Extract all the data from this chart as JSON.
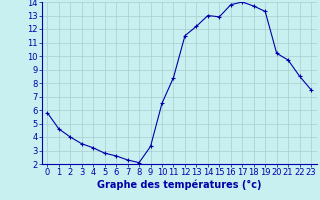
{
  "x": [
    0,
    1,
    2,
    3,
    4,
    5,
    6,
    7,
    8,
    9,
    10,
    11,
    12,
    13,
    14,
    15,
    16,
    17,
    18,
    19,
    20,
    21,
    22,
    23
  ],
  "y": [
    5.8,
    4.6,
    4.0,
    3.5,
    3.2,
    2.8,
    2.6,
    2.3,
    2.1,
    3.3,
    6.5,
    8.4,
    11.5,
    12.2,
    13.0,
    12.9,
    13.8,
    14.0,
    13.7,
    13.3,
    10.2,
    9.7,
    8.5,
    7.5
  ],
  "xlim": [
    -0.5,
    23.5
  ],
  "ylim": [
    2,
    14
  ],
  "yticks": [
    2,
    3,
    4,
    5,
    6,
    7,
    8,
    9,
    10,
    11,
    12,
    13,
    14
  ],
  "xticks": [
    0,
    1,
    2,
    3,
    4,
    5,
    6,
    7,
    8,
    9,
    10,
    11,
    12,
    13,
    14,
    15,
    16,
    17,
    18,
    19,
    20,
    21,
    22,
    23
  ],
  "xlabel": "Graphe des températures (°c)",
  "line_color": "#0000aa",
  "marker": "+",
  "bg_color": "#c8f0f0",
  "grid_color": "#aacccc",
  "axis_label_color": "#0000aa",
  "tick_color": "#0000aa",
  "xlabel_fontsize": 7,
  "tick_fontsize": 6,
  "linewidth": 0.8,
  "markersize": 3,
  "markeredgewidth": 0.8
}
